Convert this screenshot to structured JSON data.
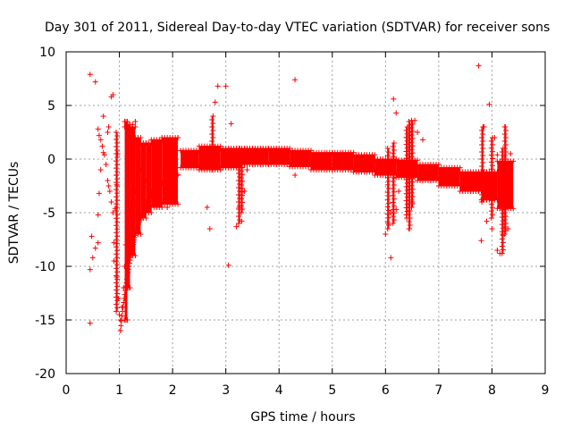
{
  "chart_data": {
    "type": "scatter",
    "title": "Day 301 of 2011, Sidereal Day-to-day VTEC variation (SDTVAR) for receiver sons",
    "xlabel": "GPS time / hours",
    "ylabel": "SDTVAR / TECUs",
    "xlim": [
      0,
      9
    ],
    "ylim": [
      -20,
      10
    ],
    "x_ticks": [
      "0",
      "1",
      "2",
      "3",
      "4",
      "5",
      "6",
      "7",
      "8",
      "9"
    ],
    "y_ticks": [
      "10",
      "5",
      "0",
      "-5",
      "-10",
      "-15",
      "-20"
    ],
    "grid": true,
    "marker": "+",
    "color": "#ff0000",
    "series": [
      {
        "name": "SDTVAR",
        "points": [
          [
            0.45,
            7.9
          ],
          [
            0.55,
            7.2
          ],
          [
            0.45,
            -15.3
          ],
          [
            0.45,
            -10.3
          ],
          [
            0.5,
            -9.2
          ],
          [
            0.55,
            -8.3
          ],
          [
            0.6,
            -7.8
          ],
          [
            0.48,
            -7.2
          ],
          [
            0.6,
            -5.2
          ],
          [
            0.62,
            -3.2
          ],
          [
            0.65,
            -1.0
          ],
          [
            0.6,
            2.8
          ],
          [
            0.62,
            2.2
          ],
          [
            0.65,
            1.8
          ],
          [
            0.68,
            1.2
          ],
          [
            0.7,
            0.6
          ],
          [
            0.72,
            0.4
          ],
          [
            0.75,
            -0.5
          ],
          [
            0.78,
            -2.0
          ],
          [
            0.8,
            -2.5
          ],
          [
            0.82,
            -3.0
          ],
          [
            0.85,
            -4.0
          ],
          [
            0.88,
            -5.0
          ],
          [
            0.9,
            -7.8
          ],
          [
            0.92,
            -4.6
          ],
          [
            0.95,
            -2.4
          ],
          [
            0.7,
            4.0
          ],
          [
            0.85,
            5.8
          ],
          [
            0.88,
            6.0
          ],
          [
            0.8,
            3.0
          ],
          [
            0.78,
            2.5
          ],
          [
            0.95,
            -1.5
          ],
          [
            0.97,
            0.5
          ],
          [
            0.9,
            -9.5
          ],
          [
            0.95,
            -11.0
          ],
          [
            0.98,
            -13.0
          ],
          [
            1.0,
            -14.5
          ],
          [
            1.02,
            -15.0
          ],
          [
            1.05,
            -13.8
          ],
          [
            1.08,
            -12.0
          ],
          [
            1.1,
            -10.0
          ],
          [
            1.12,
            -8.0
          ],
          [
            1.15,
            -6.5
          ],
          [
            1.2,
            -5.0
          ],
          [
            1.25,
            -4.0
          ],
          [
            1.3,
            -3.0
          ],
          [
            1.1,
            3.0
          ],
          [
            1.15,
            2.5
          ],
          [
            1.2,
            2.0
          ],
          [
            1.25,
            3.2
          ],
          [
            1.3,
            3.5
          ],
          [
            1.35,
            1.5
          ],
          [
            1.4,
            -1.0
          ],
          [
            1.5,
            -2.0
          ],
          [
            1.6,
            -3.0
          ],
          [
            1.75,
            -4.0
          ],
          [
            1.9,
            -4.5
          ],
          [
            2.0,
            -4.2
          ],
          [
            2.05,
            -4.0
          ],
          [
            2.1,
            2.0
          ],
          [
            2.65,
            -4.5
          ],
          [
            2.7,
            -6.5
          ],
          [
            2.8,
            5.3
          ],
          [
            2.85,
            6.8
          ],
          [
            3.0,
            6.8
          ],
          [
            3.05,
            -9.9
          ],
          [
            3.1,
            3.3
          ],
          [
            3.2,
            -6.3
          ],
          [
            3.25,
            -4.5
          ],
          [
            3.3,
            -5.8
          ],
          [
            3.35,
            -3.0
          ],
          [
            3.4,
            -1.0
          ],
          [
            4.3,
            7.4
          ],
          [
            4.2,
            -0.5
          ],
          [
            4.3,
            -1.5
          ],
          [
            6.0,
            -7.0
          ],
          [
            6.05,
            -6.0
          ],
          [
            6.1,
            -5.0
          ],
          [
            6.15,
            5.6
          ],
          [
            6.2,
            4.3
          ],
          [
            6.25,
            -3.0
          ],
          [
            6.1,
            -9.2
          ],
          [
            6.2,
            -4.7
          ],
          [
            6.4,
            -5.5
          ],
          [
            6.45,
            -6.5
          ],
          [
            6.5,
            -4.0
          ],
          [
            6.55,
            3.6
          ],
          [
            6.6,
            2.5
          ],
          [
            6.7,
            1.8
          ],
          [
            6.4,
            2.0
          ],
          [
            7.75,
            8.7
          ],
          [
            7.8,
            -7.6
          ],
          [
            7.85,
            3.0
          ],
          [
            7.95,
            -3.5
          ],
          [
            7.95,
            5.1
          ],
          [
            8.0,
            -6.5
          ],
          [
            8.05,
            2.0
          ],
          [
            8.1,
            -8.5
          ],
          [
            8.15,
            -8.8
          ],
          [
            8.2,
            -7.0
          ],
          [
            8.25,
            3.0
          ],
          [
            8.3,
            -6.5
          ],
          [
            8.35,
            0.5
          ],
          [
            8.1,
            0.4
          ],
          [
            8.2,
            -0.5
          ],
          [
            7.9,
            -5.8
          ]
        ],
        "bands": [
          [
            1.1,
            1.15,
            -15.0,
            3.5
          ],
          [
            1.15,
            1.2,
            -12.0,
            3.2
          ],
          [
            1.2,
            1.3,
            -9.0,
            3.0
          ],
          [
            1.3,
            1.4,
            -7.0,
            2.0
          ],
          [
            1.4,
            1.5,
            -5.5,
            1.5
          ],
          [
            1.5,
            1.6,
            -5.0,
            1.5
          ],
          [
            1.6,
            1.8,
            -4.5,
            1.8
          ],
          [
            1.8,
            2.1,
            -4.2,
            2.0
          ],
          [
            2.15,
            2.5,
            -0.8,
            0.8
          ],
          [
            2.5,
            2.9,
            -1.0,
            1.2
          ],
          [
            2.9,
            3.3,
            -0.8,
            1.0
          ],
          [
            3.3,
            3.8,
            -0.5,
            1.0
          ],
          [
            3.8,
            4.2,
            -0.5,
            1.0
          ],
          [
            4.2,
            4.6,
            -0.7,
            0.8
          ],
          [
            4.6,
            5.0,
            -1.0,
            0.6
          ],
          [
            5.0,
            5.4,
            -1.0,
            0.6
          ],
          [
            5.4,
            5.8,
            -1.2,
            0.4
          ],
          [
            5.8,
            6.2,
            -1.5,
            0.0
          ],
          [
            6.2,
            6.6,
            -1.7,
            -0.1
          ],
          [
            6.6,
            7.0,
            -2.0,
            -0.5
          ],
          [
            7.0,
            7.4,
            -2.5,
            -0.8
          ],
          [
            7.4,
            7.8,
            -3.0,
            -1.2
          ],
          [
            7.8,
            8.1,
            -3.8,
            -1.2
          ],
          [
            8.1,
            8.4,
            -4.6,
            -0.2
          ]
        ],
        "spikes": [
          [
            0.95,
            -14.2,
            2.5
          ],
          [
            2.75,
            -1.0,
            4.0
          ],
          [
            3.25,
            -6.0,
            1.0
          ],
          [
            3.3,
            -5.0,
            0.5
          ],
          [
            6.05,
            -6.5,
            1.0
          ],
          [
            6.15,
            -6.0,
            1.5
          ],
          [
            6.4,
            -5.2,
            3.0
          ],
          [
            6.45,
            -6.5,
            3.5
          ],
          [
            6.5,
            -4.5,
            3.6
          ],
          [
            7.82,
            -4.0,
            3.0
          ],
          [
            8.0,
            -5.5,
            2.0
          ],
          [
            8.2,
            -8.8,
            1.0
          ],
          [
            8.25,
            -7.0,
            3.0
          ]
        ]
      }
    ]
  }
}
